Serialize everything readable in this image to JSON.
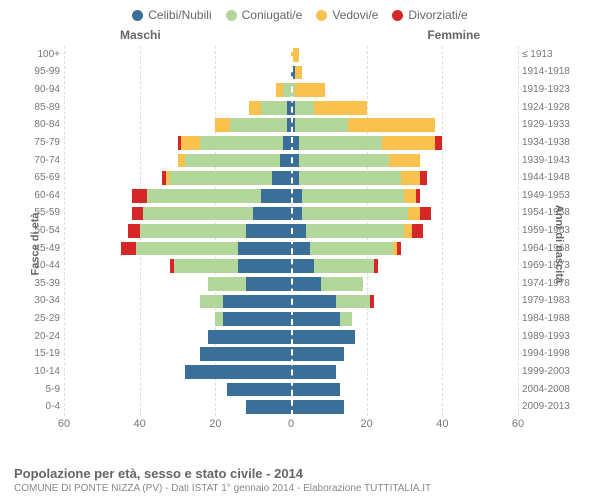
{
  "chart": {
    "type": "population-pyramid",
    "title": "Popolazione per età, sesso e stato civile - 2014",
    "subtitle": "COMUNE DI PONTE NIZZA (PV) - Dati ISTAT 1° gennaio 2014 - Elaborazione TUTTITALIA.IT",
    "legend": [
      {
        "label": "Celibi/Nubili",
        "color": "#3a6f9a"
      },
      {
        "label": "Coniugati/e",
        "color": "#b3d69b"
      },
      {
        "label": "Vedovi/e",
        "color": "#f9c14d"
      },
      {
        "label": "Divorziati/e",
        "color": "#d62728"
      }
    ],
    "gender_labels": {
      "m": "Maschi",
      "f": "Femmine"
    },
    "axis_left_title": "Fasce di età",
    "axis_right_title": "Anni di nascita",
    "xmax": 60,
    "xticks": [
      60,
      40,
      20,
      0,
      20,
      40,
      60
    ],
    "background_color": "#ffffff",
    "grid_color": "#dddddd",
    "rows": [
      {
        "age": "100+",
        "birth": "≤ 1913",
        "m": {
          "c": 0,
          "m": 0,
          "w": 0,
          "d": 0
        },
        "f": {
          "c": 0,
          "m": 0,
          "w": 2,
          "d": 0
        }
      },
      {
        "age": "95-99",
        "birth": "1914-1918",
        "m": {
          "c": 0,
          "m": 0,
          "w": 0,
          "d": 0
        },
        "f": {
          "c": 1,
          "m": 0,
          "w": 2,
          "d": 0
        }
      },
      {
        "age": "90-94",
        "birth": "1919-1923",
        "m": {
          "c": 0,
          "m": 2,
          "w": 2,
          "d": 0
        },
        "f": {
          "c": 0,
          "m": 1,
          "w": 8,
          "d": 0
        }
      },
      {
        "age": "85-89",
        "birth": "1924-1928",
        "m": {
          "c": 1,
          "m": 7,
          "w": 3,
          "d": 0
        },
        "f": {
          "c": 1,
          "m": 5,
          "w": 14,
          "d": 0
        }
      },
      {
        "age": "80-84",
        "birth": "1929-1933",
        "m": {
          "c": 1,
          "m": 15,
          "w": 4,
          "d": 0
        },
        "f": {
          "c": 1,
          "m": 14,
          "w": 23,
          "d": 0
        }
      },
      {
        "age": "75-79",
        "birth": "1934-1938",
        "m": {
          "c": 2,
          "m": 22,
          "w": 5,
          "d": 1
        },
        "f": {
          "c": 2,
          "m": 22,
          "w": 14,
          "d": 2
        }
      },
      {
        "age": "70-74",
        "birth": "1939-1943",
        "m": {
          "c": 3,
          "m": 25,
          "w": 2,
          "d": 0
        },
        "f": {
          "c": 2,
          "m": 24,
          "w": 8,
          "d": 0
        }
      },
      {
        "age": "65-69",
        "birth": "1944-1948",
        "m": {
          "c": 5,
          "m": 27,
          "w": 1,
          "d": 1
        },
        "f": {
          "c": 2,
          "m": 27,
          "w": 5,
          "d": 2
        }
      },
      {
        "age": "60-64",
        "birth": "1949-1953",
        "m": {
          "c": 8,
          "m": 30,
          "w": 0,
          "d": 4
        },
        "f": {
          "c": 3,
          "m": 27,
          "w": 3,
          "d": 1
        }
      },
      {
        "age": "55-59",
        "birth": "1954-1958",
        "m": {
          "c": 10,
          "m": 29,
          "w": 0,
          "d": 3
        },
        "f": {
          "c": 3,
          "m": 28,
          "w": 3,
          "d": 3
        }
      },
      {
        "age": "50-54",
        "birth": "1959-1963",
        "m": {
          "c": 12,
          "m": 28,
          "w": 0,
          "d": 3
        },
        "f": {
          "c": 4,
          "m": 26,
          "w": 2,
          "d": 3
        }
      },
      {
        "age": "45-49",
        "birth": "1964-1968",
        "m": {
          "c": 14,
          "m": 27,
          "w": 0,
          "d": 4
        },
        "f": {
          "c": 5,
          "m": 22,
          "w": 1,
          "d": 1
        }
      },
      {
        "age": "40-44",
        "birth": "1969-1973",
        "m": {
          "c": 14,
          "m": 17,
          "w": 0,
          "d": 1
        },
        "f": {
          "c": 6,
          "m": 16,
          "w": 0,
          "d": 1
        }
      },
      {
        "age": "35-39",
        "birth": "1974-1978",
        "m": {
          "c": 12,
          "m": 10,
          "w": 0,
          "d": 0
        },
        "f": {
          "c": 8,
          "m": 11,
          "w": 0,
          "d": 0
        }
      },
      {
        "age": "30-34",
        "birth": "1979-1983",
        "m": {
          "c": 18,
          "m": 6,
          "w": 0,
          "d": 0
        },
        "f": {
          "c": 12,
          "m": 9,
          "w": 0,
          "d": 1
        }
      },
      {
        "age": "25-29",
        "birth": "1984-1988",
        "m": {
          "c": 18,
          "m": 2,
          "w": 0,
          "d": 0
        },
        "f": {
          "c": 13,
          "m": 3,
          "w": 0,
          "d": 0
        }
      },
      {
        "age": "20-24",
        "birth": "1989-1993",
        "m": {
          "c": 22,
          "m": 0,
          "w": 0,
          "d": 0
        },
        "f": {
          "c": 17,
          "m": 0,
          "w": 0,
          "d": 0
        }
      },
      {
        "age": "15-19",
        "birth": "1994-1998",
        "m": {
          "c": 24,
          "m": 0,
          "w": 0,
          "d": 0
        },
        "f": {
          "c": 14,
          "m": 0,
          "w": 0,
          "d": 0
        }
      },
      {
        "age": "10-14",
        "birth": "1999-2003",
        "m": {
          "c": 28,
          "m": 0,
          "w": 0,
          "d": 0
        },
        "f": {
          "c": 12,
          "m": 0,
          "w": 0,
          "d": 0
        }
      },
      {
        "age": "5-9",
        "birth": "2004-2008",
        "m": {
          "c": 17,
          "m": 0,
          "w": 0,
          "d": 0
        },
        "f": {
          "c": 13,
          "m": 0,
          "w": 0,
          "d": 0
        }
      },
      {
        "age": "0-4",
        "birth": "2009-2013",
        "m": {
          "c": 12,
          "m": 0,
          "w": 0,
          "d": 0
        },
        "f": {
          "c": 14,
          "m": 0,
          "w": 0,
          "d": 0
        }
      }
    ]
  }
}
